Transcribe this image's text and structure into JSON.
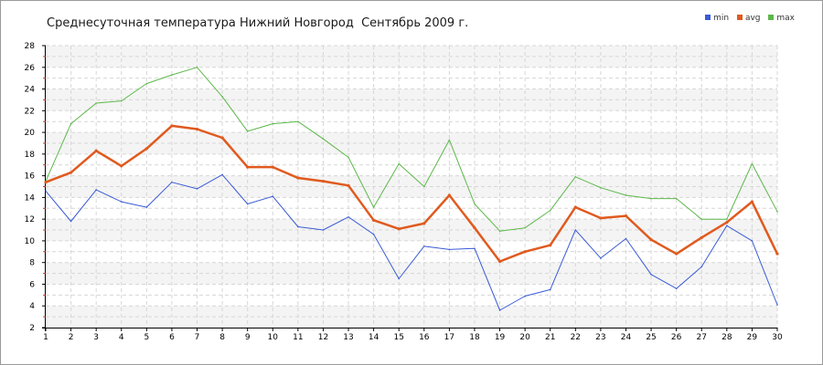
{
  "chart_data": {
    "type": "line",
    "title": "Среднесуточная температура Нижний Новгород  Сентябрь 2009 г.",
    "xlabel": "",
    "ylabel": "",
    "categories": [
      "1",
      "2",
      "3",
      "4",
      "5",
      "6",
      "7",
      "8",
      "9",
      "10",
      "11",
      "12",
      "13",
      "14",
      "15",
      "16",
      "17",
      "18",
      "19",
      "20",
      "21",
      "22",
      "23",
      "24",
      "25",
      "26",
      "27",
      "28",
      "29",
      "30"
    ],
    "ylim": [
      2,
      28
    ],
    "yticks": [
      "2",
      "4",
      "6",
      "8",
      "10",
      "12",
      "14",
      "16",
      "18",
      "20",
      "22",
      "24",
      "26",
      "28"
    ],
    "grid": true,
    "legend_position": "top-right",
    "series": [
      {
        "name": "min",
        "color": "#3a5bd6",
        "values": [
          14.6,
          11.8,
          14.7,
          13.6,
          13.1,
          15.4,
          14.8,
          16.1,
          13.4,
          14.1,
          11.3,
          11.0,
          12.2,
          10.6,
          6.5,
          9.5,
          9.2,
          9.3,
          3.6,
          4.9,
          5.5,
          11.0,
          8.4,
          10.2,
          6.9,
          5.6,
          7.6,
          11.4,
          10.0,
          4.1
        ]
      },
      {
        "name": "avg",
        "color": "#e05a1e",
        "values": [
          15.4,
          16.3,
          18.3,
          16.9,
          18.5,
          20.6,
          20.3,
          19.5,
          16.8,
          16.8,
          15.8,
          15.5,
          15.1,
          11.9,
          11.1,
          11.6,
          14.2,
          11.2,
          8.1,
          9.0,
          9.6,
          13.1,
          12.1,
          12.3,
          10.1,
          8.8,
          10.3,
          11.7,
          13.6,
          8.8
        ]
      },
      {
        "name": "max",
        "color": "#5cb84a",
        "values": [
          15.5,
          20.8,
          22.7,
          22.9,
          24.5,
          25.3,
          26.0,
          23.3,
          20.1,
          20.8,
          21.0,
          19.4,
          17.7,
          13.1,
          17.1,
          15.0,
          19.3,
          13.4,
          10.9,
          11.2,
          12.8,
          15.9,
          14.9,
          14.2,
          13.9,
          13.9,
          12.0,
          12.0,
          17.1,
          12.7
        ]
      }
    ]
  }
}
